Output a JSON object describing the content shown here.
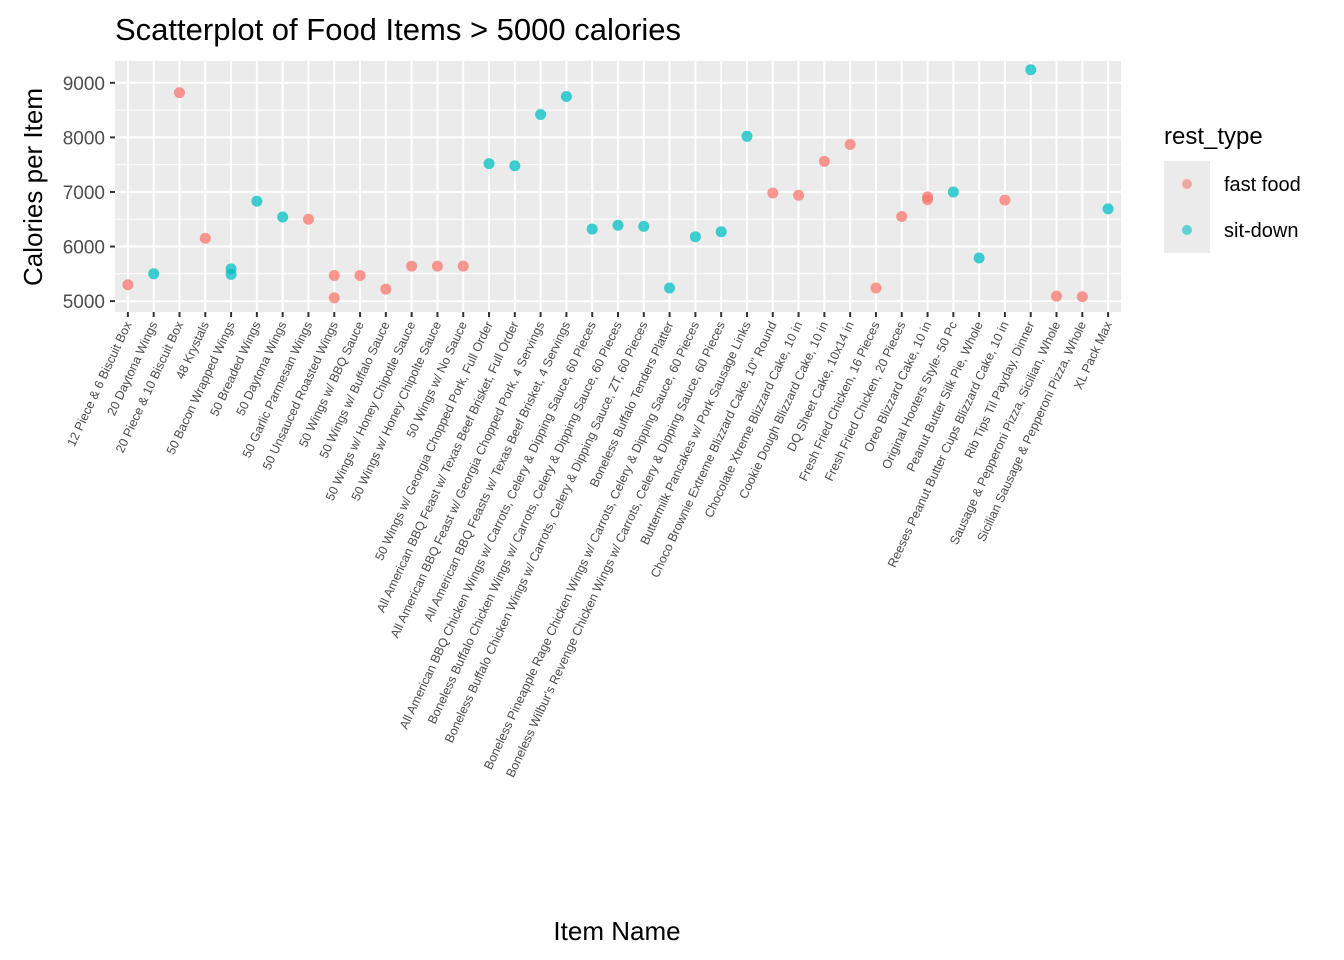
{
  "chart_data": {
    "type": "scatter",
    "title": "Scatterplot of Food Items > 5000 calories",
    "xlabel": "Item Name",
    "ylabel": "Calories per Item",
    "ylim": [
      4800,
      9400
    ],
    "yticks": [
      5000,
      6000,
      7000,
      8000,
      9000
    ],
    "grid": true,
    "legend": {
      "title": "rest_type",
      "placement": "right"
    },
    "series_colors": {
      "fast food": "#F8766D",
      "sit-down": "#00BFC4"
    },
    "categories": [
      "12 Piece & 6 Biscuit Box",
      "20 Daytona Wings",
      "20 Piece & 10 Biscuit Box",
      "48 Krystals",
      "50 Bacon Wrapped Wings",
      "50 Breaded Wings",
      "50 Daytona Wings",
      "50 Garlic Parmesan Wings",
      "50 Unsauced Roasted Wings",
      "50 Wings w/ BBQ Sauce",
      "50 Wings w/ Buffalo Sauce",
      "50 Wings w/ Honey Chipotle Sauce",
      "50 Wings w/ Honey Chipolte Sauce",
      "50 Wings w/ No Sauce",
      "50 Wings w/ Georgia Chopped Pork, Full Order",
      "All American BBQ Feast w/ Texas Beef Brisket, Full Order",
      "All American BBQ Feast w/ Georgia Chopped Pork, 4 Servings",
      "All American BBQ Feasts w/ Texas Beef Brisket, 4 Servings",
      "All American BBQ Chicken Wings w/ Carrots, Celery & Dipping Sauce, 60 Pieces",
      "Boneless Buffalo Chicken Wings w/ Carrots, Celery & Dipping Sauce, 60 Pieces",
      "Boneless Buffalo Chicken Wings w/ Carrots, Celery & Dipping Sauce, ZT, 60 Pieces",
      "Boneless Buffalo Tenders Platter",
      "Boneless Pineapple Rage Chicken Wings w/ Carrots, Celery & Dipping Sauce, 60 Pieces",
      "Boneless Wilbur's Revenge Chicken Wings w/ Carrots, Celery & Dipping Sauce, 60 Pieces",
      "Buttermilk Pancakes w/ Pork Sausage Links",
      "Choco Brownie Extreme Blizzard Cake, 10\" Round",
      "Chocolate Xtreme Blizzard Cake, 10 in",
      "Cookie Dough Blizzard Cake, 10 in",
      "DQ Sheet Cake, 10x14 in",
      "Fresh Fried Chicken, 16 Pieces",
      "Fresh Fried Chicken, 20 Pieces",
      "Oreo Blizzard Cake, 10 in",
      "Original Hooters Style- 50 Pc",
      "Peanut Butter Silk Pie, Whole",
      "Reeses Peanut Butter Cups Blizzard Cake, 10 in",
      "Rib Tips Til Payday, Dinner",
      "Sausage & Pepperoni Pizza, Sicilian, Whole",
      "Sicilian Sausage & Pepperoni Pizza, Whole",
      "XL Pack Max"
    ],
    "points": [
      {
        "x": "12 Piece & 6 Biscuit Box",
        "y": 5300,
        "rest_type": "fast food"
      },
      {
        "x": "20 Daytona Wings",
        "y": 5500,
        "rest_type": "sit-down"
      },
      {
        "x": "20 Piece & 10 Biscuit Box",
        "y": 8820,
        "rest_type": "fast food"
      },
      {
        "x": "48 Krystals",
        "y": 6150,
        "rest_type": "fast food"
      },
      {
        "x": "50 Bacon Wrapped Wings",
        "y": 5590,
        "rest_type": "sit-down"
      },
      {
        "x": "50 Bacon Wrapped Wings",
        "y": 5490,
        "rest_type": "sit-down"
      },
      {
        "x": "50 Breaded Wings",
        "y": 6830,
        "rest_type": "sit-down"
      },
      {
        "x": "50 Daytona Wings",
        "y": 6540,
        "rest_type": "sit-down"
      },
      {
        "x": "50 Garlic Parmesan Wings",
        "y": 6500,
        "rest_type": "fast food"
      },
      {
        "x": "50 Unsauced Roasted Wings",
        "y": 5470,
        "rest_type": "fast food"
      },
      {
        "x": "50 Unsauced Roasted Wings",
        "y": 5060,
        "rest_type": "fast food"
      },
      {
        "x": "50 Wings w/ BBQ Sauce",
        "y": 5470,
        "rest_type": "fast food"
      },
      {
        "x": "50 Wings w/ Buffalo Sauce",
        "y": 5220,
        "rest_type": "fast food"
      },
      {
        "x": "50 Wings w/ Honey Chipotle Sauce",
        "y": 5640,
        "rest_type": "fast food"
      },
      {
        "x": "50 Wings w/ Honey Chipolte Sauce",
        "y": 5640,
        "rest_type": "fast food"
      },
      {
        "x": "50 Wings w/ No Sauce",
        "y": 5640,
        "rest_type": "fast food"
      },
      {
        "x": "50 Wings w/ Georgia Chopped Pork, Full Order",
        "y": 7520,
        "rest_type": "sit-down"
      },
      {
        "x": "All American BBQ Feast w/ Texas Beef Brisket, Full Order",
        "y": 7480,
        "rest_type": "sit-down"
      },
      {
        "x": "All American BBQ Feast w/ Georgia Chopped Pork, 4 Servings",
        "y": 8420,
        "rest_type": "sit-down"
      },
      {
        "x": "All American BBQ Feasts w/ Texas Beef Brisket, 4 Servings",
        "y": 8750,
        "rest_type": "sit-down"
      },
      {
        "x": "All American BBQ Chicken Wings w/ Carrots, Celery & Dipping Sauce, 60 Pieces",
        "y": 6320,
        "rest_type": "sit-down"
      },
      {
        "x": "Boneless Buffalo Chicken Wings w/ Carrots, Celery & Dipping Sauce, 60 Pieces",
        "y": 6390,
        "rest_type": "sit-down"
      },
      {
        "x": "Boneless Buffalo Chicken Wings w/ Carrots, Celery & Dipping Sauce, ZT, 60 Pieces",
        "y": 6370,
        "rest_type": "sit-down"
      },
      {
        "x": "Boneless Buffalo Tenders Platter",
        "y": 5240,
        "rest_type": "sit-down"
      },
      {
        "x": "Boneless Pineapple Rage Chicken Wings w/ Carrots, Celery & Dipping Sauce, 60 Pieces",
        "y": 6180,
        "rest_type": "sit-down"
      },
      {
        "x": "Boneless Wilbur's Revenge Chicken Wings w/ Carrots, Celery & Dipping Sauce, 60 Pieces",
        "y": 6270,
        "rest_type": "sit-down"
      },
      {
        "x": "Buttermilk Pancakes w/ Pork Sausage Links",
        "y": 8020,
        "rest_type": "sit-down"
      },
      {
        "x": "Choco Brownie Extreme Blizzard Cake, 10\" Round",
        "y": 6980,
        "rest_type": "fast food"
      },
      {
        "x": "Chocolate Xtreme Blizzard Cake, 10 in",
        "y": 6940,
        "rest_type": "fast food"
      },
      {
        "x": "Cookie Dough Blizzard Cake, 10 in",
        "y": 7560,
        "rest_type": "fast food"
      },
      {
        "x": "DQ Sheet Cake, 10x14 in",
        "y": 7870,
        "rest_type": "fast food"
      },
      {
        "x": "Fresh Fried Chicken, 16 Pieces",
        "y": 5240,
        "rest_type": "fast food"
      },
      {
        "x": "Fresh Fried Chicken, 20 Pieces",
        "y": 6550,
        "rest_type": "fast food"
      },
      {
        "x": "Oreo Blizzard Cake, 10 in",
        "y": 6910,
        "rest_type": "fast food"
      },
      {
        "x": "Oreo Blizzard Cake, 10 in",
        "y": 6860,
        "rest_type": "fast food"
      },
      {
        "x": "Original Hooters Style- 50 Pc",
        "y": 7000,
        "rest_type": "sit-down"
      },
      {
        "x": "Peanut Butter Silk Pie, Whole",
        "y": 5790,
        "rest_type": "sit-down"
      },
      {
        "x": "Reeses Peanut Butter Cups Blizzard Cake, 10 in",
        "y": 6850,
        "rest_type": "fast food"
      },
      {
        "x": "Rib Tips Til Payday, Dinner",
        "y": 9240,
        "rest_type": "sit-down"
      },
      {
        "x": "Sausage & Pepperoni Pizza, Sicilian, Whole",
        "y": 5090,
        "rest_type": "fast food"
      },
      {
        "x": "Sicilian Sausage & Pepperoni Pizza, Whole",
        "y": 5080,
        "rest_type": "fast food"
      },
      {
        "x": "XL Pack Max",
        "y": 6690,
        "rest_type": "sit-down"
      }
    ]
  }
}
